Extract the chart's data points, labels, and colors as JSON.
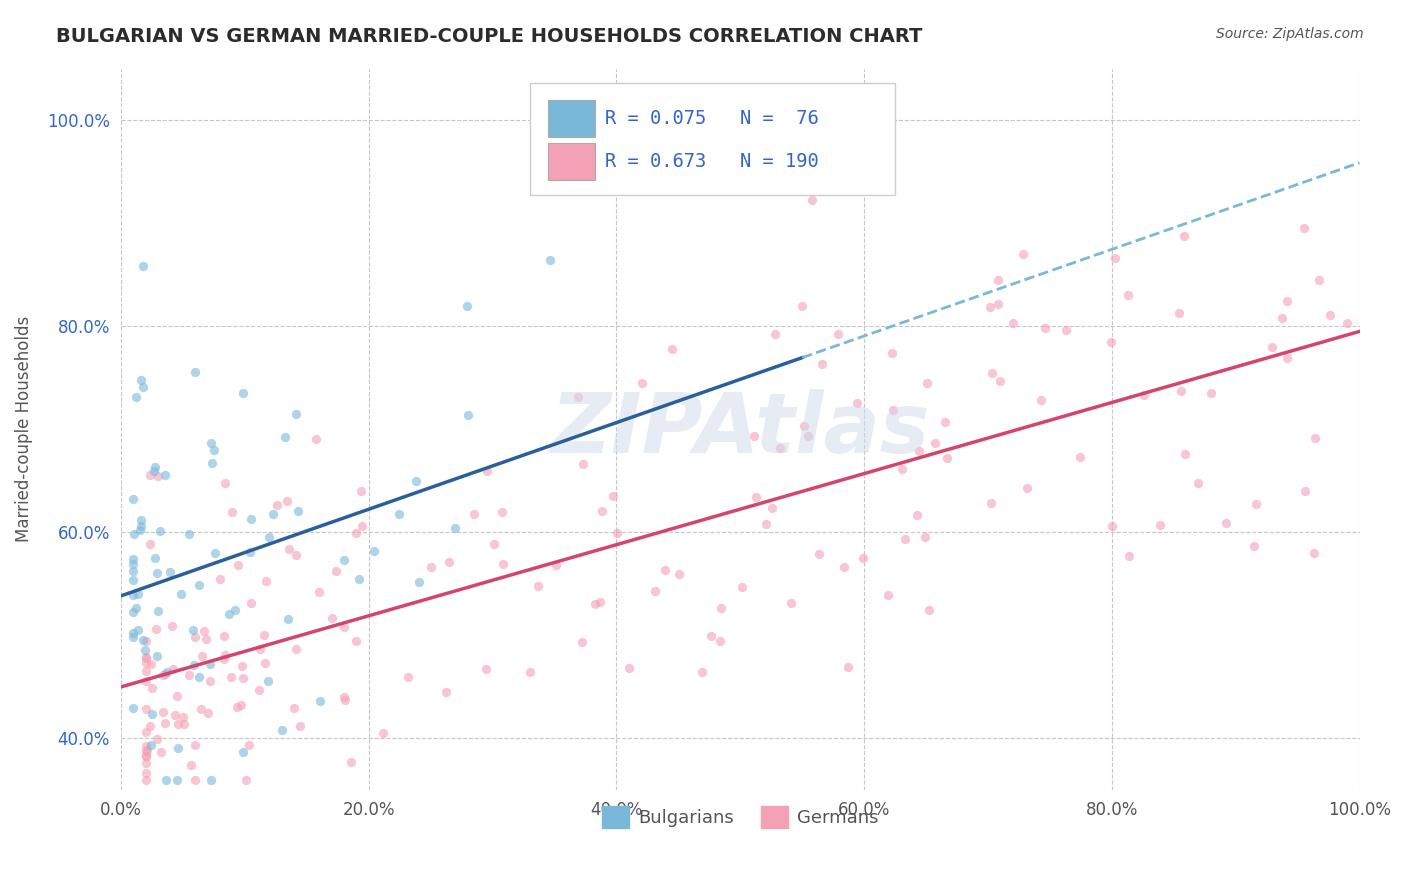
{
  "title": "BULGARIAN VS GERMAN MARRIED-COUPLE HOUSEHOLDS CORRELATION CHART",
  "source": "Source: ZipAtlas.com",
  "ylabel": "Married-couple Households",
  "xlim": [
    0.0,
    1.0
  ],
  "ylim": [
    0.35,
    1.05
  ],
  "xticks": [
    0.0,
    0.2,
    0.4,
    0.6,
    0.8,
    1.0
  ],
  "yticks": [
    0.4,
    0.6,
    0.8,
    1.0
  ],
  "xtick_labels": [
    "0.0%",
    "20.0%",
    "40.0%",
    "60.0%",
    "80.0%",
    "100.0%"
  ],
  "ytick_labels": [
    "40.0%",
    "60.0%",
    "80.0%",
    "100.0%"
  ],
  "legend_labels": [
    "Bulgarians",
    "Germans"
  ],
  "legend_r": [
    0.075,
    0.673
  ],
  "legend_n": [
    76,
    190
  ],
  "blue_color": "#7ab8d9",
  "pink_color": "#f4a0b5",
  "trend_blue": "#2a6099",
  "trend_pink": "#d4456e",
  "trend_dash_color": "#7ab8d9",
  "watermark": "ZIPAtlas",
  "background_color": "#ffffff",
  "grid_color": "#c0c0c0",
  "title_color": "#2c2c2c",
  "legend_text_color": "#3366cc",
  "scatter_alpha": 0.6,
  "scatter_size": 45
}
